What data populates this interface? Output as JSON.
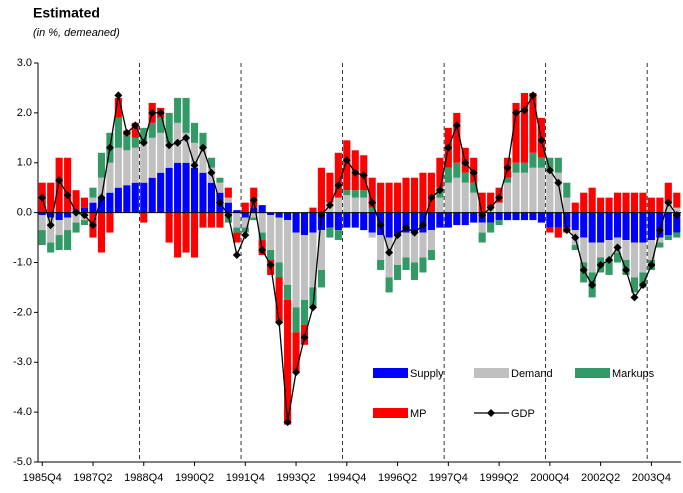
{
  "chart_data": {
    "type": "bar",
    "stacked": true,
    "title": "Estimated",
    "subtitle": "(in %, demeaned)",
    "categories": [
      "1985Q4",
      null,
      null,
      null,
      null,
      null,
      "1987Q2",
      null,
      null,
      null,
      null,
      null,
      "1988Q4",
      null,
      null,
      null,
      null,
      null,
      "1990Q2",
      null,
      null,
      null,
      null,
      null,
      "1991Q4",
      null,
      null,
      null,
      null,
      null,
      "1993Q2",
      null,
      null,
      null,
      null,
      null,
      "1994Q4",
      null,
      null,
      null,
      null,
      null,
      "1996Q2",
      null,
      null,
      null,
      null,
      null,
      "1997Q4",
      null,
      null,
      null,
      null,
      null,
      "1999Q2",
      null,
      null,
      null,
      null,
      null,
      "2000Q4",
      null,
      null,
      null,
      null,
      null,
      "2002Q2",
      null,
      null,
      null,
      null,
      null,
      "2003Q4",
      null,
      null,
      null
    ],
    "series": [
      {
        "name": "Supply",
        "color": "#0000ff",
        "values": [
          -0.05,
          -0.1,
          -0.15,
          -0.1,
          0.05,
          0.1,
          0.2,
          0.3,
          0.4,
          0.5,
          0.55,
          0.6,
          0.6,
          0.7,
          0.8,
          0.9,
          1.0,
          1.0,
          0.9,
          0.8,
          0.6,
          0.4,
          0.2,
          0.05,
          -0.1,
          0.1,
          0.15,
          -0.05,
          -0.1,
          -0.15,
          -0.4,
          -0.45,
          -0.4,
          -0.35,
          -0.3,
          -0.35,
          -0.3,
          -0.3,
          -0.35,
          -0.4,
          -0.45,
          -0.5,
          -0.45,
          -0.4,
          -0.4,
          -0.4,
          -0.35,
          -0.3,
          -0.3,
          -0.25,
          -0.25,
          -0.2,
          -0.2,
          -0.2,
          -0.15,
          -0.15,
          -0.15,
          -0.15,
          -0.15,
          -0.2,
          -0.3,
          -0.3,
          -0.3,
          -0.35,
          -0.5,
          -0.6,
          -0.6,
          -0.55,
          -0.5,
          -0.55,
          -0.6,
          -0.6,
          -0.55,
          -0.5,
          -0.45,
          -0.4
        ]
      },
      {
        "name": "Demand",
        "color": "#c0c0c0",
        "values": [
          -0.3,
          -0.5,
          -0.3,
          -0.25,
          -0.2,
          -0.15,
          0.1,
          0.4,
          0.6,
          0.8,
          0.7,
          0.7,
          0.8,
          0.8,
          0.8,
          0.5,
          0.8,
          0.6,
          0.5,
          0.5,
          0.3,
          0.2,
          0.1,
          -0.3,
          -0.2,
          -0.1,
          -0.4,
          -0.7,
          -0.9,
          -1.3,
          -1.5,
          -1.3,
          -1.1,
          -0.8,
          0.2,
          0.3,
          0.35,
          0.3,
          0.3,
          -0.1,
          -0.5,
          -0.8,
          -0.6,
          -0.5,
          -0.6,
          -0.5,
          -0.4,
          0.3,
          0.6,
          0.7,
          0.6,
          0.4,
          -0.2,
          0.1,
          0.2,
          0.6,
          0.8,
          0.8,
          0.9,
          0.9,
          0.8,
          0.8,
          0.3,
          -0.3,
          -0.5,
          -0.6,
          -0.3,
          -0.4,
          -0.3,
          -0.4,
          -0.7,
          -0.6,
          -0.4,
          -0.1,
          0.2,
          0.1
        ]
      },
      {
        "name": "Markups",
        "color": "#339966",
        "values": [
          -0.3,
          -0.2,
          -0.3,
          -0.4,
          -0.2,
          -0.1,
          0.2,
          0.5,
          0.6,
          0.6,
          0.3,
          0.2,
          0.3,
          0.3,
          0.3,
          0.6,
          0.5,
          0.7,
          0.4,
          0.3,
          0.2,
          0.1,
          -0.2,
          -0.1,
          -0.1,
          -0.05,
          -0.15,
          -0.2,
          -0.3,
          -0.3,
          -0.5,
          -0.5,
          -0.4,
          -0.35,
          -0.2,
          -0.2,
          0.1,
          0.15,
          0.15,
          0.1,
          -0.2,
          -0.3,
          -0.3,
          -0.25,
          -0.35,
          -0.3,
          -0.2,
          0.2,
          0.3,
          0.3,
          0.2,
          0.2,
          -0.2,
          -0.2,
          -0.1,
          0.1,
          0.2,
          0.2,
          0.3,
          0.2,
          0.3,
          0.3,
          0.3,
          -0.1,
          -0.4,
          -0.5,
          -0.3,
          -0.3,
          -0.2,
          -0.3,
          -0.3,
          -0.3,
          -0.2,
          -0.1,
          -0.1,
          -0.1
        ]
      },
      {
        "name": "MP",
        "color": "#ff0000",
        "values": [
          0.6,
          0.6,
          1.1,
          1.1,
          0.4,
          0.2,
          -0.5,
          -0.8,
          -0.4,
          0.4,
          0.1,
          0.3,
          -0.2,
          0.4,
          0.2,
          -0.6,
          -0.9,
          -0.8,
          -0.9,
          -0.3,
          -0.3,
          -0.3,
          0.2,
          -0.2,
          0.2,
          0.4,
          -0.3,
          -0.3,
          -0.9,
          -2.5,
          -0.8,
          -0.4,
          0.1,
          0.9,
          0.6,
          0.9,
          1.0,
          0.8,
          0.7,
          0.6,
          0.6,
          0.6,
          0.6,
          0.7,
          0.7,
          0.8,
          0.8,
          0.6,
          0.8,
          1.0,
          0.5,
          0.5,
          0.4,
          0.3,
          0.3,
          0.4,
          1.2,
          1.4,
          1.2,
          0.8,
          -0.1,
          -0.2,
          -0.1,
          0.2,
          0.4,
          0.5,
          0.3,
          0.3,
          0.4,
          0.4,
          0.4,
          0.4,
          0.3,
          0.3,
          0.4,
          0.3
        ]
      },
      {
        "name": "GDP",
        "type": "line",
        "color": "#000000",
        "values": [
          0.3,
          -0.25,
          0.65,
          0.35,
          0.0,
          -0.05,
          -0.25,
          0.3,
          1.3,
          2.35,
          1.6,
          1.75,
          1.4,
          2.0,
          2.0,
          1.35,
          1.4,
          1.5,
          0.95,
          1.3,
          0.8,
          0.2,
          -0.05,
          -0.85,
          -0.45,
          0.25,
          -0.75,
          -1.05,
          -2.2,
          -4.2,
          -3.2,
          -2.5,
          -1.9,
          -0.05,
          0.15,
          0.55,
          1.05,
          0.8,
          0.75,
          0.2,
          -0.25,
          -0.8,
          -0.45,
          -0.3,
          -0.4,
          -0.25,
          0.3,
          0.45,
          1.3,
          1.75,
          1.0,
          0.8,
          -0.05,
          0.1,
          0.3,
          0.9,
          2.0,
          2.05,
          2.35,
          1.45,
          0.85,
          0.6,
          -0.35,
          -0.5,
          -1.15,
          -1.45,
          -1.05,
          -0.95,
          -0.7,
          -1.15,
          -1.7,
          -1.45,
          -1.05,
          -0.35,
          0.2,
          -0.05
        ]
      }
    ],
    "ylim": [
      -5,
      3
    ],
    "yticks": [
      {
        "value": -5,
        "label": "-5.0"
      },
      {
        "value": -4,
        "label": "-4.0"
      },
      {
        "value": -3,
        "label": "-3.0"
      },
      {
        "value": -2,
        "label": "-2.0"
      },
      {
        "value": -1,
        "label": "-1.0"
      },
      {
        "value": 0,
        "label": "0.0"
      },
      {
        "value": 1,
        "label": "1.0"
      },
      {
        "value": 2,
        "label": "2.0"
      },
      {
        "value": 3,
        "label": "3.0"
      }
    ],
    "legend": "lower right"
  }
}
